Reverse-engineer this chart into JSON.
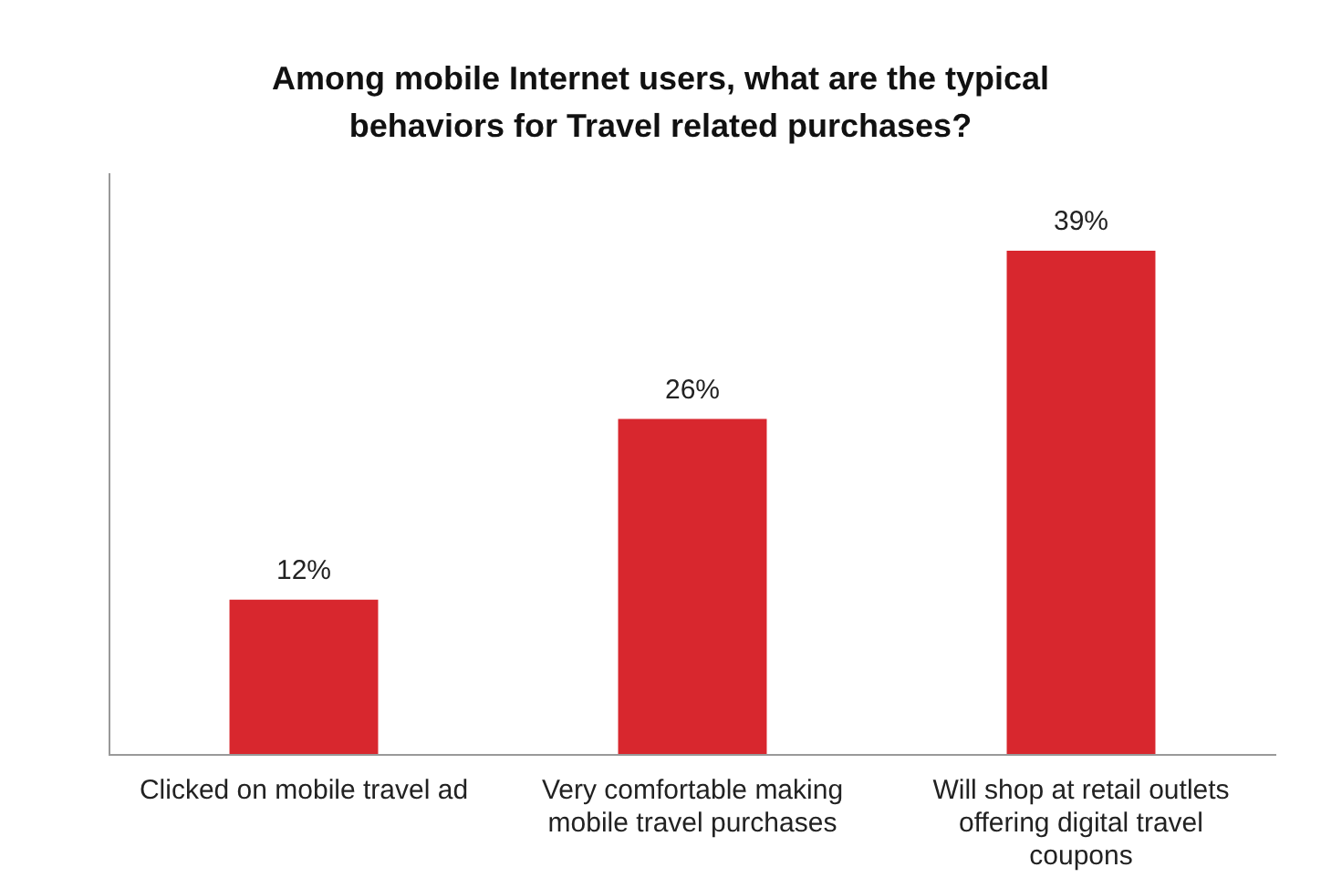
{
  "chart_data": {
    "type": "bar",
    "title": "Among mobile Internet users, what are the typical behaviors for Travel related purchases?",
    "categories": [
      "Clicked on mobile travel ad",
      "Very comfortable making mobile travel purchases",
      "Will shop at retail outlets offering digital travel coupons"
    ],
    "values": [
      12,
      26,
      39
    ],
    "color": "#d8272e",
    "tick_labels": "x",
    "data_labels": true,
    "value_labels": [
      "12%",
      "26%",
      "39%"
    ],
    "grid": false,
    "legend": false
  }
}
